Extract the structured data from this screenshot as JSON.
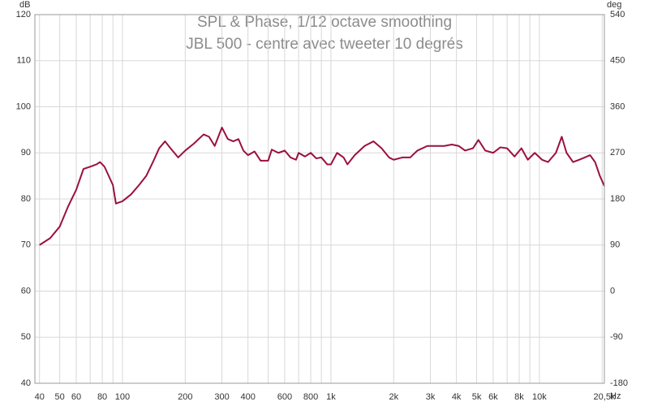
{
  "chart_data": {
    "type": "line",
    "title": "SPL & Phase, 1/12 octave smoothing",
    "subtitle": "JBL 500 - centre avec tweeter 10 degrés",
    "ylabel": "dB",
    "y2label": "deg",
    "xlabel": "Hz",
    "log_x": true,
    "grid": true,
    "xlim": [
      38,
      20500
    ],
    "xticks": [
      40,
      50,
      60,
      80,
      100,
      200,
      300,
      400,
      600,
      800,
      {
        "value": 1000,
        "label": "1k"
      },
      {
        "value": 2000,
        "label": "2k"
      },
      {
        "value": 3000,
        "label": "3k"
      },
      {
        "value": 4000,
        "label": "4k"
      },
      {
        "value": 5000,
        "label": "5k"
      },
      {
        "value": 6000,
        "label": "6k"
      },
      {
        "value": 8000,
        "label": "8k"
      },
      {
        "value": 10000,
        "label": "10k"
      },
      {
        "value": 20500,
        "label": "20,5k"
      }
    ],
    "xgrid_minor": [
      70,
      90,
      500,
      700,
      900,
      7000,
      9000,
      20000
    ],
    "ylim": [
      40,
      120
    ],
    "yticks": [
      40,
      50,
      60,
      70,
      80,
      90,
      100,
      110,
      120
    ],
    "y2lim": [
      -180,
      540
    ],
    "y2ticks": [
      -180,
      -90,
      0,
      90,
      180,
      270,
      360,
      450,
      540
    ],
    "x": [
      40,
      45,
      50,
      55,
      60,
      65,
      70,
      75,
      78,
      82,
      90,
      93,
      100,
      110,
      120,
      130,
      140,
      150,
      160,
      170,
      185,
      200,
      220,
      245,
      260,
      277,
      300,
      320,
      340,
      360,
      380,
      400,
      430,
      460,
      500,
      520,
      560,
      600,
      640,
      680,
      700,
      750,
      800,
      850,
      900,
      960,
      1000,
      1070,
      1150,
      1200,
      1300,
      1450,
      1600,
      1750,
      1900,
      2000,
      2200,
      2400,
      2600,
      2900,
      3200,
      3500,
      3800,
      4100,
      4400,
      4800,
      5100,
      5500,
      6000,
      6500,
      7000,
      7600,
      8200,
      8800,
      9500,
      10300,
      11000,
      12000,
      12800,
      13500,
      14500,
      15500,
      16500,
      17500,
      18500,
      19500,
      20500
    ],
    "series": [
      {
        "color": "#9b1040",
        "values": [
          70,
          71.5,
          74,
          78.5,
          82,
          86.5,
          87,
          87.5,
          88,
          87,
          83,
          79,
          79.5,
          81,
          83,
          85,
          88,
          91,
          92.5,
          91,
          89,
          90.5,
          92,
          94,
          93.5,
          91.5,
          95.5,
          93,
          92.5,
          93,
          90.5,
          89.5,
          90.3,
          88.3,
          88.3,
          90.7,
          90,
          90.5,
          89,
          88.5,
          90,
          89.2,
          90,
          88.8,
          89,
          87.5,
          87.5,
          90,
          89,
          87.5,
          89.5,
          91.5,
          92.5,
          91,
          89,
          88.5,
          89,
          89,
          90.5,
          91.5,
          91.5,
          91.5,
          91.8,
          91.5,
          90.5,
          91,
          92.8,
          90.5,
          90,
          91.2,
          91,
          89.2,
          91,
          88.5,
          90,
          88.5,
          88,
          90,
          93.5,
          90,
          88,
          88.5,
          89,
          89.5,
          88,
          85,
          82.8
        ]
      }
    ]
  }
}
